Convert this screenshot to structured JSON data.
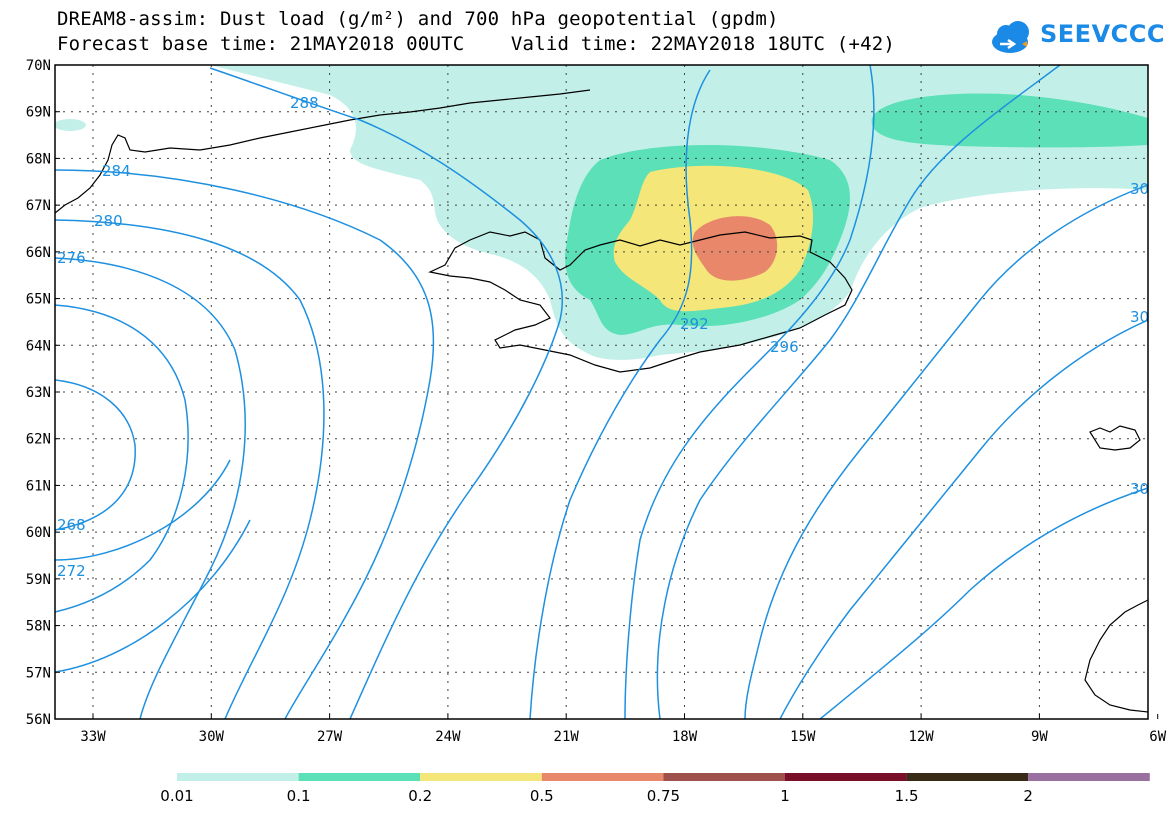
{
  "header": {
    "title_line1": "DREAM8-assim: Dust load (g/m²) and 700 hPa geopotential (gpdm)",
    "title_line2": "Forecast base time: 21MAY2018 00UTC    Valid time: 22MAY2018 18UTC (+42)",
    "logo_text": "SEEVCCC"
  },
  "map": {
    "lat_labels": [
      "70N",
      "69N",
      "68N",
      "67N",
      "66N",
      "65N",
      "64N",
      "63N",
      "62N",
      "61N",
      "60N",
      "59N",
      "58N",
      "57N",
      "56N"
    ],
    "lon_labels": [
      "33W",
      "30W",
      "27W",
      "24W",
      "21W",
      "18W",
      "15W",
      "12W",
      "9W",
      "6W"
    ],
    "contour_labels": [
      "288",
      "284",
      "280",
      "276",
      "268",
      "272",
      "292",
      "296",
      "30",
      "30",
      "30"
    ],
    "contour_color": "#1e90e0",
    "coast_color": "#000000",
    "dust_colors": [
      "#c2f0e8",
      "#5ce0b8",
      "#f5e67a",
      "#e8876a"
    ]
  },
  "legend": {
    "levels": [
      "0.01",
      "0.1",
      "0.2",
      "0.5",
      "0.75",
      "1",
      "1.5",
      "2"
    ],
    "colors": [
      "#c2f0e8",
      "#5ce0b8",
      "#f5e67a",
      "#e8876a",
      "#a0504a",
      "#7a0f2a",
      "#3a2a18",
      "#9a70a0"
    ]
  }
}
